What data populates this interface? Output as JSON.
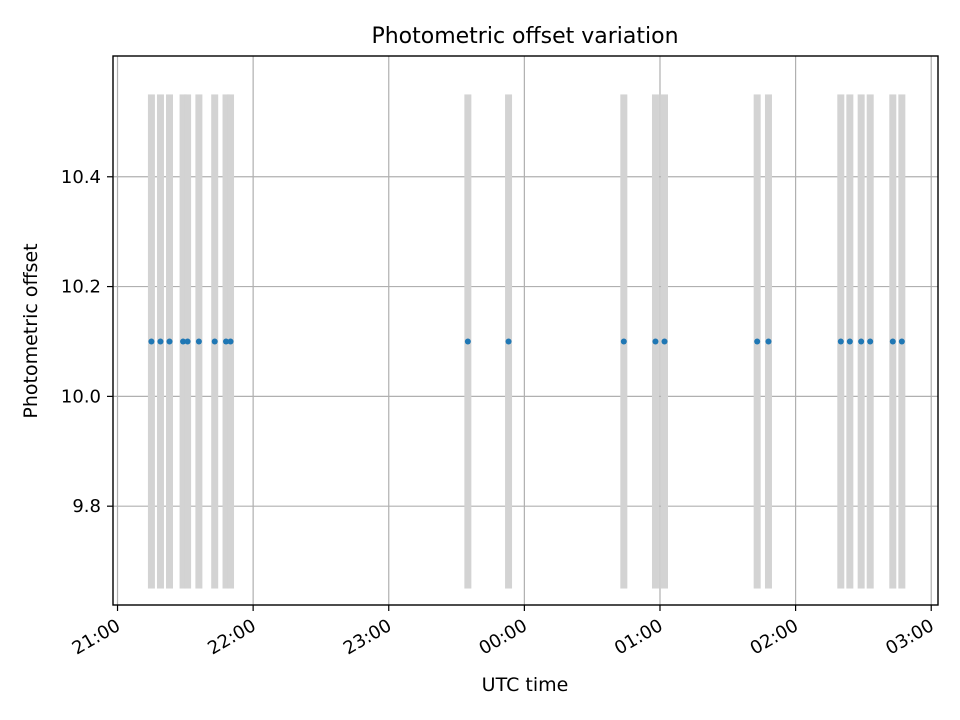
{
  "chart_data": {
    "type": "scatter",
    "title": "Photometric offset variation",
    "xlabel": "UTC time",
    "ylabel": "Photometric offset",
    "x_ticks": [
      "21:00",
      "22:00",
      "23:00",
      "00:00",
      "01:00",
      "02:00",
      "03:00"
    ],
    "y_ticks": [
      "9.8",
      "10.0",
      "10.2",
      "10.4"
    ],
    "xlim": [
      "20:58",
      "03:03"
    ],
    "ylim": [
      9.62,
      10.62
    ],
    "grid": true,
    "series": [
      {
        "color": "#1f77b4",
        "points": [
          {
            "x": "21:15",
            "y": 10.1
          },
          {
            "x": "21:19",
            "y": 10.1
          },
          {
            "x": "21:23",
            "y": 10.1
          },
          {
            "x": "21:29",
            "y": 10.1
          },
          {
            "x": "21:31",
            "y": 10.1
          },
          {
            "x": "21:36",
            "y": 10.1
          },
          {
            "x": "21:43",
            "y": 10.1
          },
          {
            "x": "21:48",
            "y": 10.1
          },
          {
            "x": "21:50",
            "y": 10.1
          },
          {
            "x": "23:35",
            "y": 10.1
          },
          {
            "x": "23:53",
            "y": 10.1
          },
          {
            "x": "00:44",
            "y": 10.1
          },
          {
            "x": "00:58",
            "y": 10.1
          },
          {
            "x": "01:02",
            "y": 10.1
          },
          {
            "x": "01:43",
            "y": 10.1
          },
          {
            "x": "01:48",
            "y": 10.1
          },
          {
            "x": "02:20",
            "y": 10.1
          },
          {
            "x": "02:24",
            "y": 10.1
          },
          {
            "x": "02:29",
            "y": 10.1
          },
          {
            "x": "02:33",
            "y": 10.1
          },
          {
            "x": "02:43",
            "y": 10.1
          },
          {
            "x": "02:47",
            "y": 10.1
          }
        ]
      }
    ],
    "bands": {
      "color": "#d3d3d3",
      "y_range": [
        9.65,
        10.55
      ],
      "times": [
        "21:15",
        "21:19",
        "21:23",
        "21:29",
        "21:31",
        "21:36",
        "21:43",
        "21:48",
        "21:50",
        "23:35",
        "23:53",
        "00:44",
        "00:58",
        "01:02",
        "01:43",
        "01:48",
        "02:20",
        "02:24",
        "02:29",
        "02:33",
        "02:43",
        "02:47"
      ]
    }
  }
}
